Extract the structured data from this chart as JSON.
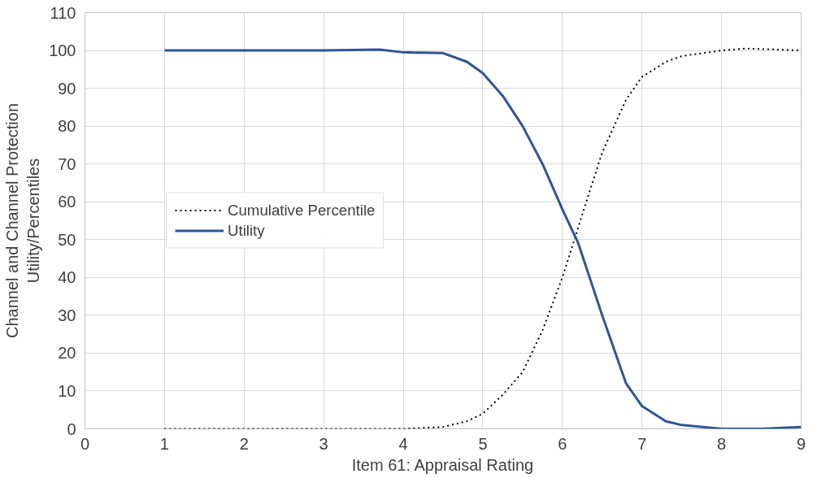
{
  "chart_data": {
    "type": "line",
    "xlabel": "Item 61: Appraisal Rating",
    "ylabel": "Channel and Channel Protection\nUtility/Percentiles",
    "xlim": [
      0,
      9
    ],
    "ylim": [
      0,
      110
    ],
    "xticks": [
      0,
      1,
      2,
      3,
      4,
      5,
      6,
      7,
      8,
      9
    ],
    "yticks": [
      0,
      10,
      20,
      30,
      40,
      50,
      60,
      70,
      80,
      90,
      100,
      110
    ],
    "grid": true,
    "legend": "left",
    "series": [
      {
        "name": "Cumulative Percentile",
        "color": "#000000",
        "line_style": "dotted",
        "x": [
          1,
          2,
          3,
          4,
          4.5,
          4.8,
          5,
          5.25,
          5.5,
          5.75,
          6,
          6.3,
          6.5,
          6.8,
          7,
          7.3,
          7.5,
          8,
          8.3,
          8.6,
          9
        ],
        "values": [
          0,
          0,
          0,
          0,
          0.5,
          2,
          4,
          9,
          15,
          26,
          40,
          60,
          73,
          87,
          93,
          97,
          98.5,
          100,
          100.5,
          100.3,
          100
        ]
      },
      {
        "name": "Utility",
        "color": "#2f5597",
        "line_style": "solid",
        "x": [
          1,
          2,
          3,
          3.7,
          4,
          4.2,
          4.5,
          4.8,
          5,
          5.25,
          5.5,
          5.75,
          6,
          6.2,
          6.5,
          6.8,
          7,
          7.3,
          7.5,
          8,
          8.5,
          9
        ],
        "values": [
          100,
          100,
          100,
          100.2,
          99.5,
          99.4,
          99.3,
          97,
          94,
          88,
          80,
          70,
          58,
          49,
          30,
          12,
          6,
          2,
          1,
          0,
          0,
          0.5
        ]
      }
    ]
  }
}
